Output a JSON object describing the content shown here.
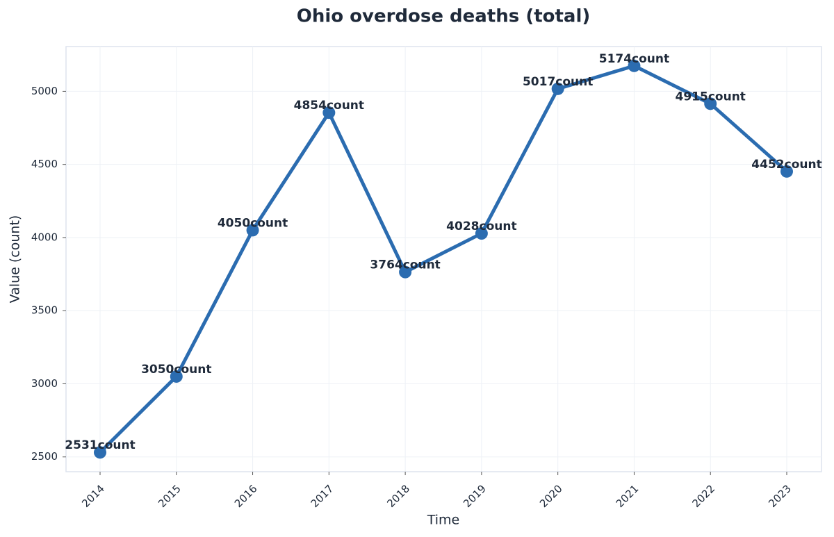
{
  "chart_data": {
    "type": "line",
    "title": "Ohio overdose deaths (total)",
    "x_label": "Time",
    "y_label": "Value (count)",
    "categories": [
      "2014",
      "2015",
      "2016",
      "2017",
      "2018",
      "2019",
      "2020",
      "2021",
      "2022",
      "2023"
    ],
    "series": [
      {
        "name": "Ohio overdose deaths",
        "color": "#2b6cb0",
        "values": [
          2531,
          3050,
          4050,
          4854,
          3764,
          4028,
          5017,
          5174,
          4915,
          4452
        ],
        "value_labels": [
          "2531count",
          "3050count",
          "4050count",
          "4854count",
          "3764count",
          "4028count",
          "5017count",
          "5174count",
          "4915count",
          "4452count"
        ]
      }
    ],
    "ylim": [
      2399,
      5306
    ],
    "yticks": [
      2500,
      3000,
      3500,
      4000,
      4500,
      5000
    ],
    "grid": true
  }
}
